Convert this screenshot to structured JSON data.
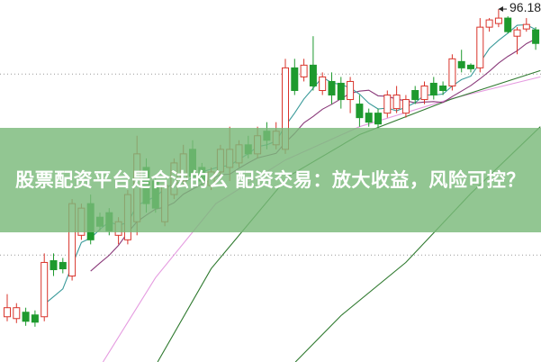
{
  "banner": {
    "title": "股票配资平台是合法的么 配资交易：放大收益，风险可控？"
  },
  "chart_data": {
    "type": "candlestick",
    "ylim": [
      57.18,
      97.18
    ],
    "grid": "dotted horizontal",
    "colors": {
      "up": "#d9342b",
      "down": "#1e9a2e",
      "ma5": "#3a9a9a",
      "ma10": "#8a3a7a",
      "ma20": "#e59be0",
      "ma_long1": "#2f7a2f",
      "ma_long2": "#2f7a2f"
    },
    "annotation": {
      "text": "96.18",
      "value": 96.18,
      "index": 53
    },
    "candles": [
      [
        62.18,
        63.18,
        64.68,
        61.68
      ],
      [
        61.98,
        63.18,
        63.68,
        61.48
      ],
      [
        62.68,
        61.68,
        63.18,
        61.18
      ],
      [
        62.38,
        61.58,
        62.88,
        61.08
      ],
      [
        62.18,
        68.18,
        69.18,
        61.68
      ],
      [
        68.38,
        67.38,
        69.18,
        66.68
      ],
      [
        68.18,
        67.48,
        68.68,
        66.98
      ],
      [
        66.68,
        74.68,
        75.18,
        66.18
      ],
      [
        71.18,
        74.18,
        74.68,
        70.68
      ],
      [
        74.68,
        70.68,
        75.68,
        70.18
      ],
      [
        73.18,
        72.18,
        73.68,
        71.68
      ],
      [
        73.68,
        71.68,
        74.18,
        71.18
      ],
      [
        71.18,
        72.68,
        73.18,
        70.18
      ],
      [
        70.68,
        75.68,
        76.18,
        70.18
      ],
      [
        72.68,
        80.18,
        82.18,
        71.18
      ],
      [
        78.68,
        74.68,
        79.68,
        73.68
      ],
      [
        77.18,
        74.18,
        77.68,
        73.68
      ],
      [
        72.68,
        76.68,
        77.18,
        72.18
      ],
      [
        75.68,
        79.18,
        79.68,
        75.18
      ],
      [
        77.18,
        80.18,
        81.18,
        76.68
      ],
      [
        80.68,
        77.68,
        81.68,
        77.18
      ],
      [
        78.68,
        77.18,
        79.18,
        76.68
      ],
      [
        76.68,
        78.18,
        78.68,
        76.18
      ],
      [
        78.18,
        80.68,
        81.18,
        77.68
      ],
      [
        78.68,
        80.68,
        83.18,
        77.18
      ],
      [
        79.18,
        81.18,
        81.68,
        78.68
      ],
      [
        81.18,
        80.18,
        82.18,
        79.68
      ],
      [
        80.18,
        82.18,
        83.18,
        79.68
      ],
      [
        82.68,
        81.68,
        83.68,
        80.68
      ],
      [
        81.18,
        82.68,
        83.68,
        80.68
      ],
      [
        80.68,
        89.68,
        90.68,
        80.18
      ],
      [
        89.68,
        87.18,
        90.68,
        86.68
      ],
      [
        88.68,
        89.98,
        90.68,
        88.18
      ],
      [
        89.98,
        87.68,
        93.18,
        87.18
      ],
      [
        87.18,
        88.68,
        89.18,
        86.68
      ],
      [
        88.18,
        86.68,
        89.18,
        85.68
      ],
      [
        87.98,
        86.18,
        88.68,
        85.18
      ],
      [
        86.18,
        88.18,
        88.68,
        84.68
      ],
      [
        85.68,
        84.18,
        86.68,
        83.18
      ],
      [
        84.68,
        83.68,
        85.18,
        83.18
      ],
      [
        84.68,
        83.48,
        85.18,
        82.98
      ],
      [
        84.68,
        86.68,
        87.18,
        84.18
      ],
      [
        85.18,
        86.68,
        87.68,
        84.68
      ],
      [
        84.68,
        86.18,
        86.68,
        84.18
      ],
      [
        87.18,
        86.18,
        87.68,
        85.68
      ],
      [
        86.18,
        87.68,
        88.18,
        85.68
      ],
      [
        87.98,
        86.68,
        88.68,
        86.18
      ],
      [
        87.68,
        87.18,
        88.18,
        86.68
      ],
      [
        87.68,
        90.68,
        91.18,
        87.18
      ],
      [
        90.38,
        89.68,
        91.68,
        89.18
      ],
      [
        89.98,
        89.58,
        90.18,
        89.18
      ],
      [
        89.68,
        94.18,
        95.18,
        89.18
      ],
      [
        94.18,
        94.98,
        95.18,
        93.68
      ],
      [
        94.58,
        95.18,
        96.18,
        94.18
      ],
      [
        95.18,
        93.68,
        95.38,
        93.48
      ],
      [
        93.18,
        93.88,
        94.18,
        91.18
      ],
      [
        93.98,
        94.48,
        95.18,
        93.68
      ],
      [
        93.88,
        92.38,
        94.18,
        91.68
      ]
    ],
    "candle_format": [
      "open",
      "close",
      "high",
      "low"
    ],
    "long_averages": [
      {
        "key": "ma20",
        "points": [
          [
            9,
            55.0
          ],
          [
            16,
            66.5
          ],
          [
            22.5,
            74.68
          ],
          [
            30,
            79.5
          ],
          [
            38,
            83.18
          ],
          [
            48,
            86.3
          ],
          [
            57.5,
            88.68
          ]
        ]
      },
      {
        "key": "ma_long1",
        "points": [
          [
            15,
            55.0
          ],
          [
            22,
            67.5
          ],
          [
            30.3,
            77.68
          ],
          [
            38,
            82.3
          ],
          [
            47.8,
            86.18
          ],
          [
            57.5,
            89.38
          ]
        ]
      },
      {
        "key": "ma_long2",
        "points": [
          [
            29,
            55.0
          ],
          [
            36,
            62.3
          ],
          [
            43,
            68.18
          ],
          [
            50,
            75.8
          ],
          [
            57.5,
            83.18
          ]
        ]
      }
    ],
    "gridlines": [
      89.0,
      69.0
    ]
  }
}
